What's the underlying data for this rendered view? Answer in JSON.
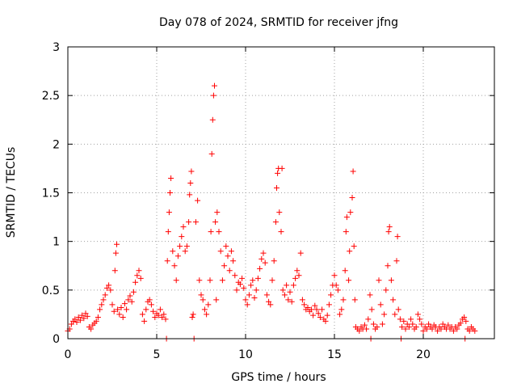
{
  "chart_data": {
    "type": "scatter",
    "title": "Day 078 of 2024, SRMTID for receiver jfng",
    "xlabel": "GPS time / hours",
    "ylabel": "SRMTID / TECUs",
    "xlim": [
      0,
      24
    ],
    "ylim": [
      0,
      3
    ],
    "xticks": [
      0,
      5,
      10,
      15,
      20
    ],
    "xtick_labels": [
      "0",
      "5",
      "10",
      "15",
      "20"
    ],
    "yticks": [
      0,
      0.5,
      1,
      1.5,
      2,
      2.5,
      3
    ],
    "ytick_labels": [
      "0",
      "0.5",
      "1",
      "1.5",
      "2",
      "2.5",
      "3"
    ],
    "grid": true,
    "marker": "+",
    "color": "#ff0000",
    "series": [
      {
        "name": "SRMTID",
        "points": [
          [
            0.0,
            0.08
          ],
          [
            0.1,
            0.1
          ],
          [
            0.2,
            0.15
          ],
          [
            0.3,
            0.18
          ],
          [
            0.4,
            0.2
          ],
          [
            0.5,
            0.17
          ],
          [
            0.6,
            0.22
          ],
          [
            0.7,
            0.19
          ],
          [
            0.8,
            0.24
          ],
          [
            0.9,
            0.21
          ],
          [
            1.0,
            0.26
          ],
          [
            1.1,
            0.23
          ],
          [
            1.2,
            0.12
          ],
          [
            1.3,
            0.1
          ],
          [
            1.4,
            0.14
          ],
          [
            1.5,
            0.16
          ],
          [
            1.6,
            0.18
          ],
          [
            1.7,
            0.22
          ],
          [
            1.8,
            0.3
          ],
          [
            1.9,
            0.35
          ],
          [
            2.0,
            0.4
          ],
          [
            2.1,
            0.45
          ],
          [
            2.2,
            0.52
          ],
          [
            2.3,
            0.55
          ],
          [
            2.4,
            0.5
          ],
          [
            2.5,
            0.35
          ],
          [
            2.6,
            0.28
          ],
          [
            2.65,
            0.7
          ],
          [
            2.7,
            0.88
          ],
          [
            2.75,
            0.97
          ],
          [
            2.8,
            0.3
          ],
          [
            2.9,
            0.25
          ],
          [
            3.0,
            0.32
          ],
          [
            3.1,
            0.22
          ],
          [
            3.2,
            0.36
          ],
          [
            3.3,
            0.3
          ],
          [
            3.4,
            0.4
          ],
          [
            3.5,
            0.44
          ],
          [
            3.6,
            0.38
          ],
          [
            3.7,
            0.48
          ],
          [
            3.8,
            0.58
          ],
          [
            3.9,
            0.65
          ],
          [
            4.0,
            0.7
          ],
          [
            4.1,
            0.62
          ],
          [
            4.2,
            0.25
          ],
          [
            4.3,
            0.18
          ],
          [
            4.4,
            0.3
          ],
          [
            4.5,
            0.38
          ],
          [
            4.6,
            0.4
          ],
          [
            4.7,
            0.35
          ],
          [
            4.8,
            0.28
          ],
          [
            4.9,
            0.22
          ],
          [
            5.0,
            0.26
          ],
          [
            5.1,
            0.24
          ],
          [
            5.2,
            0.3
          ],
          [
            5.3,
            0.22
          ],
          [
            5.4,
            0.25
          ],
          [
            5.5,
            0.2
          ],
          [
            5.55,
            0.0
          ],
          [
            5.6,
            0.8
          ],
          [
            5.65,
            1.1
          ],
          [
            5.7,
            1.3
          ],
          [
            5.75,
            1.5
          ],
          [
            5.8,
            1.65
          ],
          [
            5.9,
            0.9
          ],
          [
            6.0,
            0.75
          ],
          [
            6.1,
            0.6
          ],
          [
            6.2,
            0.85
          ],
          [
            6.3,
            0.95
          ],
          [
            6.4,
            1.05
          ],
          [
            6.5,
            1.15
          ],
          [
            6.6,
            0.9
          ],
          [
            6.7,
            0.95
          ],
          [
            6.8,
            1.2
          ],
          [
            6.85,
            1.48
          ],
          [
            6.9,
            1.6
          ],
          [
            6.95,
            1.72
          ],
          [
            7.0,
            0.22
          ],
          [
            7.05,
            0.25
          ],
          [
            7.1,
            0.0
          ],
          [
            7.2,
            1.2
          ],
          [
            7.3,
            1.42
          ],
          [
            7.4,
            0.6
          ],
          [
            7.5,
            0.45
          ],
          [
            7.6,
            0.4
          ],
          [
            7.7,
            0.3
          ],
          [
            7.8,
            0.25
          ],
          [
            7.9,
            0.35
          ],
          [
            8.0,
            0.6
          ],
          [
            8.05,
            1.1
          ],
          [
            8.1,
            1.9
          ],
          [
            8.15,
            2.25
          ],
          [
            8.2,
            2.5
          ],
          [
            8.25,
            2.6
          ],
          [
            8.3,
            1.2
          ],
          [
            8.35,
            0.4
          ],
          [
            8.4,
            1.3
          ],
          [
            8.5,
            1.1
          ],
          [
            8.6,
            0.9
          ],
          [
            8.7,
            0.6
          ],
          [
            8.8,
            0.75
          ],
          [
            8.9,
            0.95
          ],
          [
            9.0,
            0.85
          ],
          [
            9.1,
            0.7
          ],
          [
            9.2,
            0.9
          ],
          [
            9.3,
            0.8
          ],
          [
            9.4,
            0.65
          ],
          [
            9.5,
            0.5
          ],
          [
            9.6,
            0.58
          ],
          [
            9.7,
            0.56
          ],
          [
            9.8,
            0.62
          ],
          [
            9.9,
            0.52
          ],
          [
            10.0,
            0.4
          ],
          [
            10.1,
            0.35
          ],
          [
            10.2,
            0.45
          ],
          [
            10.3,
            0.55
          ],
          [
            10.4,
            0.6
          ],
          [
            10.5,
            0.42
          ],
          [
            10.6,
            0.5
          ],
          [
            10.7,
            0.62
          ],
          [
            10.8,
            0.72
          ],
          [
            10.9,
            0.82
          ],
          [
            11.0,
            0.88
          ],
          [
            11.1,
            0.78
          ],
          [
            11.2,
            0.45
          ],
          [
            11.3,
            0.38
          ],
          [
            11.4,
            0.35
          ],
          [
            11.5,
            0.6
          ],
          [
            11.6,
            0.8
          ],
          [
            11.7,
            1.2
          ],
          [
            11.75,
            1.55
          ],
          [
            11.8,
            1.7
          ],
          [
            11.85,
            1.75
          ],
          [
            11.9,
            1.3
          ],
          [
            12.0,
            1.1
          ],
          [
            12.05,
            1.75
          ],
          [
            12.1,
            0.5
          ],
          [
            12.2,
            0.45
          ],
          [
            12.3,
            0.55
          ],
          [
            12.4,
            0.4
          ],
          [
            12.5,
            0.48
          ],
          [
            12.6,
            0.38
          ],
          [
            12.7,
            0.55
          ],
          [
            12.8,
            0.62
          ],
          [
            12.9,
            0.7
          ],
          [
            13.0,
            0.65
          ],
          [
            13.1,
            0.88
          ],
          [
            13.2,
            0.4
          ],
          [
            13.3,
            0.35
          ],
          [
            13.4,
            0.3
          ],
          [
            13.5,
            0.32
          ],
          [
            13.6,
            0.28
          ],
          [
            13.7,
            0.3
          ],
          [
            13.8,
            0.24
          ],
          [
            13.9,
            0.34
          ],
          [
            14.0,
            0.3
          ],
          [
            14.1,
            0.26
          ],
          [
            14.2,
            0.22
          ],
          [
            14.3,
            0.3
          ],
          [
            14.4,
            0.2
          ],
          [
            14.5,
            0.18
          ],
          [
            14.6,
            0.24
          ],
          [
            14.7,
            0.35
          ],
          [
            14.8,
            0.45
          ],
          [
            14.9,
            0.55
          ],
          [
            15.0,
            0.65
          ],
          [
            15.1,
            0.55
          ],
          [
            15.2,
            0.5
          ],
          [
            15.3,
            0.25
          ],
          [
            15.4,
            0.3
          ],
          [
            15.5,
            0.4
          ],
          [
            15.6,
            0.7
          ],
          [
            15.65,
            1.1
          ],
          [
            15.7,
            1.25
          ],
          [
            15.8,
            0.6
          ],
          [
            15.85,
            0.9
          ],
          [
            15.9,
            1.3
          ],
          [
            16.0,
            1.45
          ],
          [
            16.05,
            1.72
          ],
          [
            16.1,
            0.95
          ],
          [
            16.15,
            0.4
          ],
          [
            16.2,
            0.12
          ],
          [
            16.3,
            0.1
          ],
          [
            16.4,
            0.08
          ],
          [
            16.5,
            0.12
          ],
          [
            16.6,
            0.1
          ],
          [
            16.7,
            0.14
          ],
          [
            16.8,
            0.1
          ],
          [
            16.9,
            0.2
          ],
          [
            17.0,
            0.45
          ],
          [
            17.05,
            0.0
          ],
          [
            17.1,
            0.3
          ],
          [
            17.2,
            0.15
          ],
          [
            17.3,
            0.1
          ],
          [
            17.4,
            0.12
          ],
          [
            17.5,
            0.6
          ],
          [
            17.6,
            0.35
          ],
          [
            17.7,
            0.15
          ],
          [
            17.8,
            0.25
          ],
          [
            17.9,
            0.5
          ],
          [
            18.0,
            0.75
          ],
          [
            18.05,
            1.1
          ],
          [
            18.1,
            1.15
          ],
          [
            18.2,
            0.6
          ],
          [
            18.3,
            0.4
          ],
          [
            18.4,
            0.25
          ],
          [
            18.5,
            0.8
          ],
          [
            18.55,
            1.05
          ],
          [
            18.6,
            0.3
          ],
          [
            18.7,
            0.2
          ],
          [
            18.75,
            0.0
          ],
          [
            18.8,
            0.12
          ],
          [
            18.9,
            0.18
          ],
          [
            19.0,
            0.1
          ],
          [
            19.1,
            0.15
          ],
          [
            19.2,
            0.12
          ],
          [
            19.3,
            0.2
          ],
          [
            19.4,
            0.15
          ],
          [
            19.5,
            0.1
          ],
          [
            19.6,
            0.12
          ],
          [
            19.7,
            0.25
          ],
          [
            19.8,
            0.2
          ],
          [
            19.9,
            0.15
          ],
          [
            20.0,
            0.08
          ],
          [
            20.1,
            0.12
          ],
          [
            20.2,
            0.1
          ],
          [
            20.3,
            0.15
          ],
          [
            20.4,
            0.12
          ],
          [
            20.5,
            0.1
          ],
          [
            20.6,
            0.14
          ],
          [
            20.7,
            0.12
          ],
          [
            20.8,
            0.08
          ],
          [
            20.9,
            0.12
          ],
          [
            21.0,
            0.1
          ],
          [
            21.1,
            0.15
          ],
          [
            21.2,
            0.12
          ],
          [
            21.3,
            0.1
          ],
          [
            21.4,
            0.14
          ],
          [
            21.5,
            0.1
          ],
          [
            21.6,
            0.12
          ],
          [
            21.7,
            0.08
          ],
          [
            21.8,
            0.12
          ],
          [
            21.9,
            0.1
          ],
          [
            22.0,
            0.14
          ],
          [
            22.1,
            0.16
          ],
          [
            22.2,
            0.2
          ],
          [
            22.3,
            0.22
          ],
          [
            22.35,
            0.0
          ],
          [
            22.4,
            0.18
          ],
          [
            22.5,
            0.1
          ],
          [
            22.6,
            0.08
          ],
          [
            22.7,
            0.12
          ],
          [
            22.8,
            0.1
          ],
          [
            22.9,
            0.08
          ]
        ]
      }
    ]
  }
}
